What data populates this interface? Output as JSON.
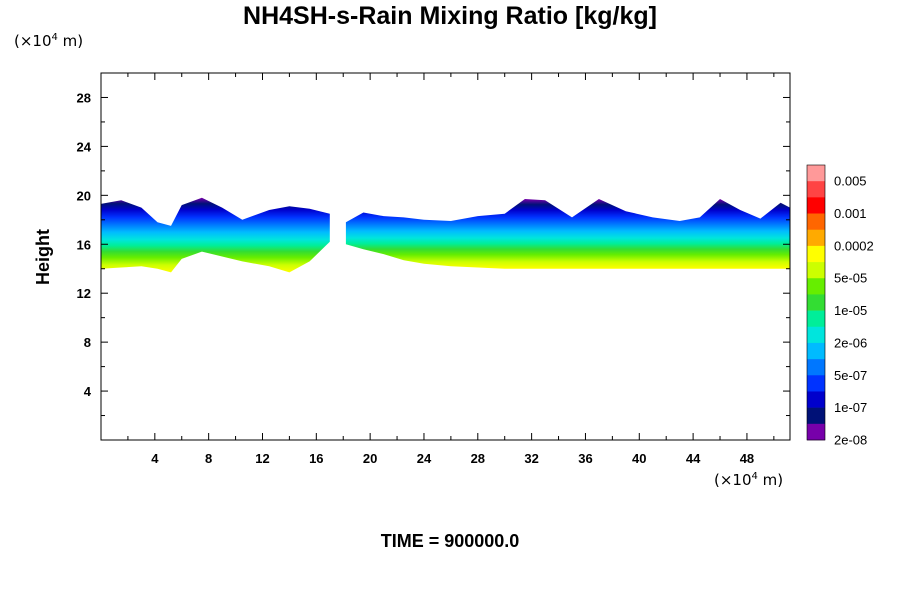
{
  "chart_data": {
    "type": "contour",
    "title": "NH4SH-s-Rain Mixing Ratio [kg/kg]",
    "ylabel": "Height",
    "x_unit": "(×10⁴ m)",
    "y_unit": "(×10⁴ m)",
    "x_unit_parts": {
      "prefix": "(×10",
      "exp": "4",
      "suffix": " m)"
    },
    "y_unit_parts": {
      "prefix": "(×10",
      "exp": "4",
      "suffix": " m)"
    },
    "xlim": [
      0,
      51.2
    ],
    "ylim": [
      0,
      30
    ],
    "x_ticks": [
      4,
      8,
      12,
      16,
      20,
      24,
      28,
      32,
      36,
      40,
      44,
      48
    ],
    "y_ticks": [
      4,
      8,
      12,
      16,
      20,
      24,
      28
    ],
    "time_label": "TIME = 900000.0",
    "colorbar": {
      "colors": [
        "#ff9999",
        "#ff4444",
        "#ff0000",
        "#ff6600",
        "#ffaa00",
        "#ffff00",
        "#ccff00",
        "#66ee00",
        "#33dd33",
        "#00ee99",
        "#00e5dd",
        "#00bbff",
        "#0077ff",
        "#0033ff",
        "#0000cc",
        "#001177",
        "#7700aa"
      ],
      "labels": [
        "0.005",
        "0.001",
        "0.0002",
        "5e-05",
        "1e-05",
        "2e-06",
        "5e-07",
        "1e-07",
        "2e-08"
      ]
    },
    "regions": [
      {
        "name": "plume-left",
        "x": [
          0,
          1.5,
          3,
          4.2,
          5.2,
          6,
          7.5,
          9,
          10.5,
          12.5,
          14,
          15.5,
          17
        ],
        "top": [
          19.3,
          19.6,
          19.0,
          17.8,
          17.5,
          19.2,
          19.8,
          19.0,
          18.0,
          18.8,
          19.1,
          18.9,
          18.5
        ],
        "bot": [
          14.0,
          14.1,
          14.2,
          14.0,
          13.7,
          14.8,
          15.4,
          15.0,
          14.6,
          14.2,
          13.7,
          14.6,
          16.2
        ]
      },
      {
        "name": "plume-right",
        "x": [
          18.2,
          19.5,
          21,
          22.5,
          24,
          26,
          28,
          30,
          31.5,
          33,
          35,
          37,
          39,
          41,
          43,
          44.5,
          46,
          47.5,
          49,
          50.5,
          51.2
        ],
        "top": [
          17.8,
          18.6,
          18.3,
          18.2,
          18.0,
          17.9,
          18.3,
          18.5,
          19.7,
          19.6,
          18.2,
          19.7,
          18.7,
          18.2,
          17.9,
          18.2,
          19.7,
          18.8,
          18.1,
          19.4,
          19.0
        ],
        "bot": [
          16.0,
          15.6,
          15.2,
          14.7,
          14.4,
          14.2,
          14.1,
          14.0,
          14.0,
          14.0,
          14.0,
          14.0,
          14.0,
          14.0,
          14.0,
          14.0,
          14.0,
          14.0,
          14.0,
          14.0,
          14.0
        ]
      }
    ]
  }
}
